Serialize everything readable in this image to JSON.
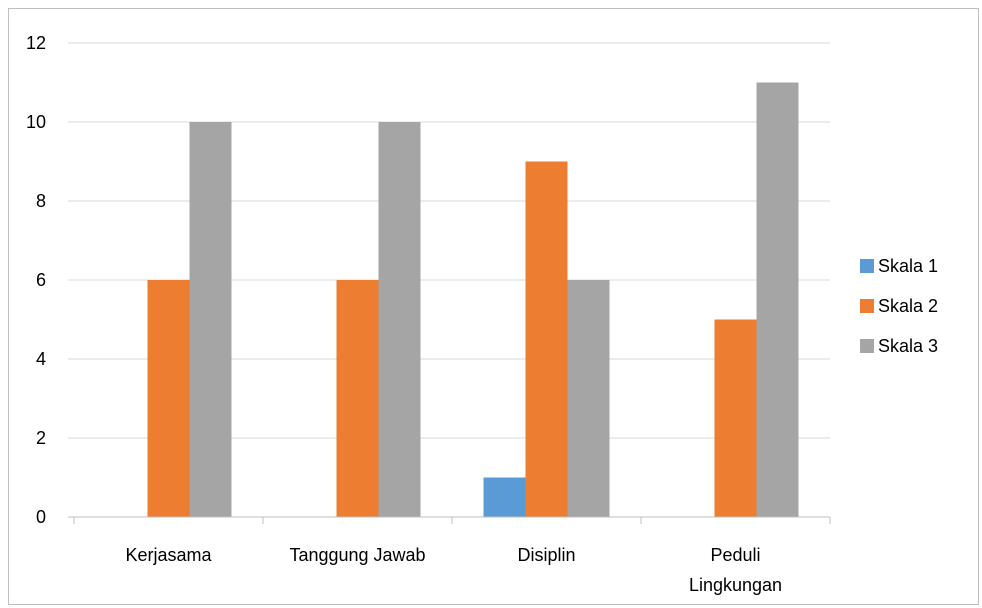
{
  "chart_data": {
    "type": "bar",
    "title": "",
    "xlabel": "",
    "ylabel": "",
    "categories": [
      [
        "Kerjasama"
      ],
      [
        "Tanggung Jawab"
      ],
      [
        "Disiplin"
      ],
      [
        "Peduli",
        "Lingkungan"
      ]
    ],
    "series": [
      {
        "name": "Skala 1",
        "color": "#5b9bd5",
        "values": [
          0,
          0,
          1,
          0
        ]
      },
      {
        "name": "Skala 2",
        "color": "#ed7d31",
        "values": [
          6,
          6,
          9,
          5
        ]
      },
      {
        "name": "Skala 3",
        "color": "#a5a5a5",
        "values": [
          10,
          10,
          6,
          11
        ]
      }
    ],
    "ylim": [
      0,
      12
    ],
    "yticks": [
      0,
      2,
      4,
      6,
      8,
      10,
      12
    ],
    "grid": true,
    "legend": "right"
  }
}
